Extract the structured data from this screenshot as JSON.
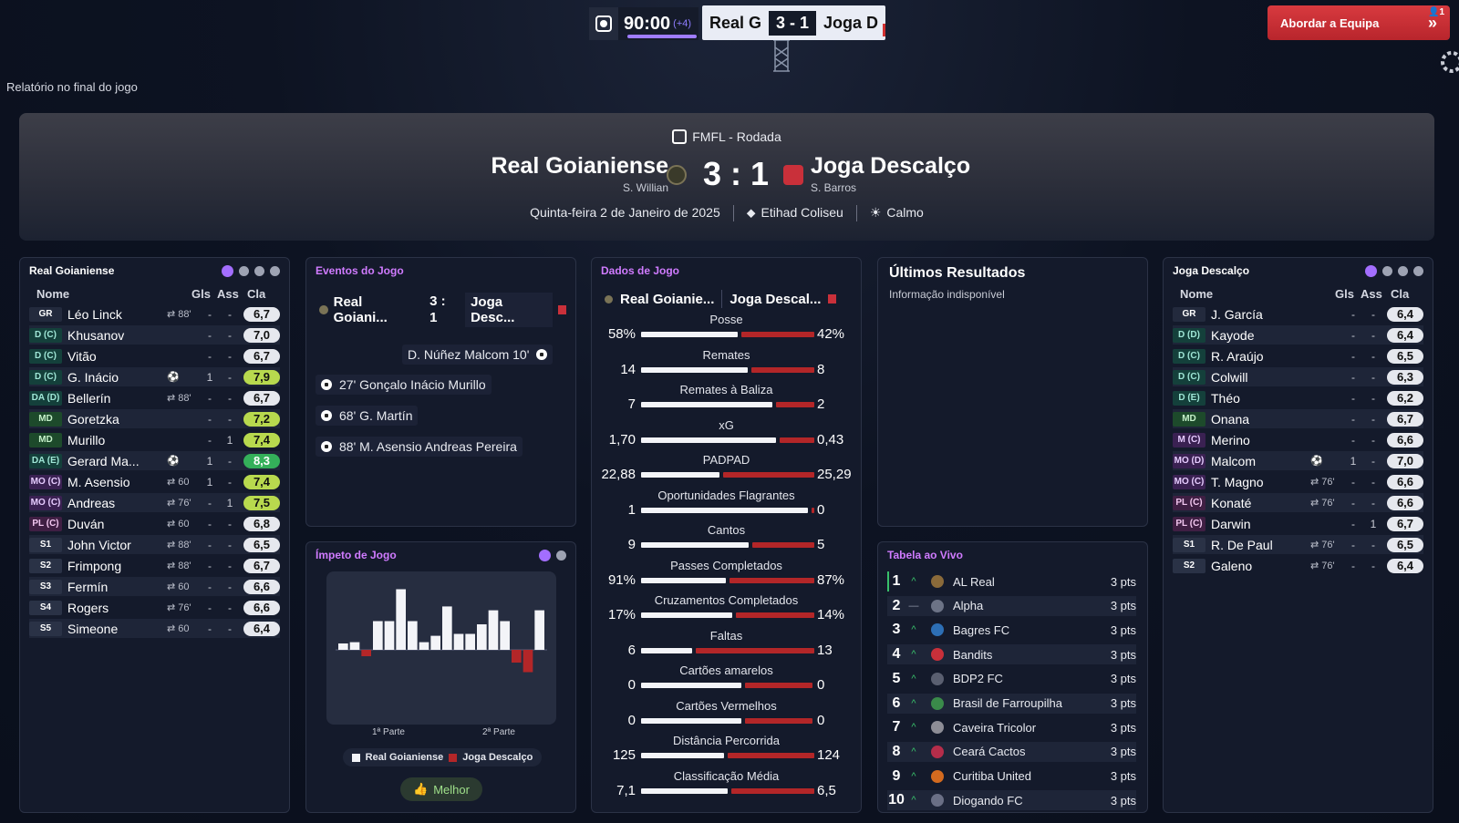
{
  "topbar": {
    "clock": "90:00",
    "added_time": "(+4)",
    "home_short": "Real G",
    "score": "3 - 1",
    "away_short": "Joga D",
    "approach_label": "Abordar a Equipa",
    "approach_badge": "1"
  },
  "report_label": "Relatório no final do jogo",
  "header": {
    "competition": "FMFL - Rodada",
    "home_team": "Real Goianiense",
    "home_manager": "S. Willian",
    "score": "3 : 1",
    "away_team": "Joga Descalço",
    "away_manager": "S. Barros",
    "date": "Quinta-feira 2 de Janeiro de 2025",
    "stadium": "Etihad Coliseu",
    "weather": "Calmo"
  },
  "colors": {
    "accent": "#a36eff",
    "home": "#f3f4f8",
    "away": "#b32628",
    "approach": "#d83a3f"
  },
  "home_panel": {
    "title": "Real Goianiense",
    "headers": [
      "Nome",
      "Gls",
      "Ass",
      "Cla"
    ],
    "players": [
      {
        "pos": "GR",
        "cls": "gk",
        "name": "Léo Linck",
        "evt": "⇄ 88'",
        "g": "-",
        "a": "-",
        "r": "6,7",
        "rc": ""
      },
      {
        "pos": "D (C)",
        "cls": "df",
        "name": "Khusanov",
        "evt": "",
        "g": "-",
        "a": "-",
        "r": "7,0",
        "rc": ""
      },
      {
        "pos": "D (C)",
        "cls": "df",
        "name": "Vitão",
        "evt": "",
        "g": "-",
        "a": "-",
        "r": "6,7",
        "rc": ""
      },
      {
        "pos": "D (C)",
        "cls": "df",
        "name": "G. Inácio",
        "evt": "⚽",
        "g": "1",
        "a": "-",
        "r": "7,9",
        "rc": "g1"
      },
      {
        "pos": "DA (D)",
        "cls": "df",
        "name": "Bellerín",
        "evt": "⇄ 88'",
        "g": "-",
        "a": "-",
        "r": "6,7",
        "rc": ""
      },
      {
        "pos": "MD",
        "cls": "md",
        "name": "Goretzka",
        "evt": "",
        "g": "-",
        "a": "-",
        "r": "7,2",
        "rc": "g1"
      },
      {
        "pos": "MD",
        "cls": "md",
        "name": "Murillo",
        "evt": "",
        "g": "-",
        "a": "1",
        "r": "7,4",
        "rc": "g1"
      },
      {
        "pos": "DA (E)",
        "cls": "df",
        "name": "Gerard Ma...",
        "evt": "⚽",
        "g": "1",
        "a": "-",
        "r": "8,3",
        "rc": "g2"
      },
      {
        "pos": "MO (C)",
        "cls": "mo",
        "name": "M. Asensio",
        "evt": "⇄ 60",
        "g": "1",
        "a": "-",
        "r": "7,4",
        "rc": "g1"
      },
      {
        "pos": "MO (C)",
        "cls": "mo",
        "name": "Andreas",
        "evt": "⇄ 76'",
        "g": "-",
        "a": "1",
        "r": "7,5",
        "rc": "g1"
      },
      {
        "pos": "PL (C)",
        "cls": "pl",
        "name": "Duván",
        "evt": "⇄ 60",
        "g": "-",
        "a": "-",
        "r": "6,8",
        "rc": ""
      },
      {
        "pos": "S1",
        "cls": "sb",
        "name": "John Victor",
        "evt": "⇄ 88'",
        "g": "-",
        "a": "-",
        "r": "6,5",
        "rc": ""
      },
      {
        "pos": "S2",
        "cls": "sb",
        "name": "Frimpong",
        "evt": "⇄ 88'",
        "g": "-",
        "a": "-",
        "r": "6,7",
        "rc": ""
      },
      {
        "pos": "S3",
        "cls": "sb",
        "name": "Fermín",
        "evt": "⇄ 60",
        "g": "-",
        "a": "-",
        "r": "6,6",
        "rc": ""
      },
      {
        "pos": "S4",
        "cls": "sb",
        "name": "Rogers",
        "evt": "⇄ 76'",
        "g": "-",
        "a": "-",
        "r": "6,6",
        "rc": ""
      },
      {
        "pos": "S5",
        "cls": "sb",
        "name": "Simeone",
        "evt": "⇄ 60",
        "g": "-",
        "a": "-",
        "r": "6,4",
        "rc": ""
      }
    ]
  },
  "events_panel": {
    "title": "Eventos do Jogo",
    "home": "Real Goiani...",
    "score": "3 : 1",
    "away": "Joga Desc...",
    "away_events": [
      "D. Núñez Malcom 10'"
    ],
    "home_events": [
      "27' Gonçalo Inácio Murillo",
      "68' G. Martín",
      "88' M. Asensio Andreas Pereira"
    ]
  },
  "momentum_panel": {
    "title": "Ímpeto de Jogo",
    "first_half": "1ª Parte",
    "second_half": "2ª Parte",
    "legend_home": "Real Goianiense",
    "legend_away": "Joga Descalço",
    "best_button": "Melhor"
  },
  "chart_data": {
    "type": "bar",
    "title": "Ímpeto de Jogo",
    "series": [
      {
        "name": "Real Goianiense",
        "values": [
          0.1,
          0.12,
          0,
          0.45,
          0.45,
          0.95,
          0.45,
          0.12,
          0.22,
          0.68,
          0.25,
          0.25,
          0.4,
          0.62,
          0.45,
          0,
          0,
          0.62
        ]
      },
      {
        "name": "Joga Descalço",
        "values": [
          0,
          0,
          -0.1,
          0,
          0,
          0,
          0,
          0,
          0,
          0,
          0,
          0,
          0,
          0,
          0,
          -0.2,
          -0.35,
          0
        ]
      }
    ],
    "x_labels": [
      "1ª Parte",
      "2ª Parte"
    ],
    "ylim": [
      -0.5,
      1
    ]
  },
  "stats_panel": {
    "title": "Dados de Jogo",
    "home": "Real Goianie...",
    "away": "Joga Descal...",
    "rows": [
      {
        "label": "Posse",
        "h": "58%",
        "a": "42%",
        "hv": 58,
        "av": 42
      },
      {
        "label": "Remates",
        "h": "14",
        "a": "8",
        "hv": 14,
        "av": 8
      },
      {
        "label": "Remates à Baliza",
        "h": "7",
        "a": "2",
        "hv": 7,
        "av": 2
      },
      {
        "label": "xG",
        "h": "1,70",
        "a": "0,43",
        "hv": 1.7,
        "av": 0.43
      },
      {
        "label": "PADPAD",
        "h": "22,88",
        "a": "25,29",
        "hv": 22.88,
        "av": 25.29
      },
      {
        "label": "Oportunidades Flagrantes",
        "h": "1",
        "a": "0",
        "hv": 1,
        "av": 0
      },
      {
        "label": "Cantos",
        "h": "9",
        "a": "5",
        "hv": 9,
        "av": 5
      },
      {
        "label": "Passes Completados",
        "h": "91%",
        "a": "87%",
        "hv": 91,
        "av": 87
      },
      {
        "label": "Cruzamentos Completados",
        "h": "17%",
        "a": "14%",
        "hv": 17,
        "av": 14
      },
      {
        "label": "Faltas",
        "h": "6",
        "a": "13",
        "hv": 6,
        "av": 13
      },
      {
        "label": "Cartões amarelos",
        "h": "0",
        "a": "0",
        "hv": 0,
        "av": 0
      },
      {
        "label": "Cartões Vermelhos",
        "h": "0",
        "a": "0",
        "hv": 0,
        "av": 0
      },
      {
        "label": "Distância Percorrida",
        "h": "125",
        "a": "124",
        "hv": 125,
        "av": 124
      },
      {
        "label": "Classificação Média",
        "h": "7,1",
        "a": "6,5",
        "hv": 7.1,
        "av": 6.5
      }
    ]
  },
  "results_panel": {
    "title": "Últimos Resultados",
    "info": "Informação indisponível"
  },
  "live_table": {
    "title": "Tabela ao Vivo",
    "rows": [
      {
        "n": "1",
        "t": "^",
        "team": "AL Real",
        "pts": "3 pts"
      },
      {
        "n": "2",
        "t": "—",
        "team": "Alpha",
        "pts": "3 pts"
      },
      {
        "n": "3",
        "t": "^",
        "team": "Bagres FC",
        "pts": "3 pts"
      },
      {
        "n": "4",
        "t": "^",
        "team": "Bandits",
        "pts": "3 pts"
      },
      {
        "n": "5",
        "t": "^",
        "team": "BDP2 FC",
        "pts": "3 pts"
      },
      {
        "n": "6",
        "t": "^",
        "team": "Brasil de Farroupilha",
        "pts": "3 pts"
      },
      {
        "n": "7",
        "t": "^",
        "team": "Caveira Tricolor",
        "pts": "3 pts"
      },
      {
        "n": "8",
        "t": "^",
        "team": "Ceará Cactos",
        "pts": "3 pts"
      },
      {
        "n": "9",
        "t": "^",
        "team": "Curitiba United",
        "pts": "3 pts"
      },
      {
        "n": "10",
        "t": "^",
        "team": "Diogando FC",
        "pts": "3 pts"
      }
    ]
  },
  "away_panel": {
    "title": "Joga Descalço",
    "headers": [
      "Nome",
      "Gls",
      "Ass",
      "Cla"
    ],
    "players": [
      {
        "pos": "GR",
        "cls": "gk",
        "name": "J. García",
        "evt": "",
        "g": "-",
        "a": "-",
        "r": "6,4",
        "rc": ""
      },
      {
        "pos": "D (D)",
        "cls": "df",
        "name": "Kayode",
        "evt": "",
        "g": "-",
        "a": "-",
        "r": "6,4",
        "rc": ""
      },
      {
        "pos": "D (C)",
        "cls": "df",
        "name": "R. Araújo",
        "evt": "",
        "g": "-",
        "a": "-",
        "r": "6,5",
        "rc": ""
      },
      {
        "pos": "D (C)",
        "cls": "df",
        "name": "Colwill",
        "evt": "",
        "g": "-",
        "a": "-",
        "r": "6,3",
        "rc": ""
      },
      {
        "pos": "D (E)",
        "cls": "df",
        "name": "Théo",
        "evt": "",
        "g": "-",
        "a": "-",
        "r": "6,2",
        "rc": ""
      },
      {
        "pos": "MD",
        "cls": "md",
        "name": "Onana",
        "evt": "",
        "g": "-",
        "a": "-",
        "r": "6,7",
        "rc": ""
      },
      {
        "pos": "M (C)",
        "cls": "mo",
        "name": "Merino",
        "evt": "",
        "g": "-",
        "a": "-",
        "r": "6,6",
        "rc": ""
      },
      {
        "pos": "MO (D)",
        "cls": "mo",
        "name": "Malcom",
        "evt": "⚽",
        "g": "1",
        "a": "-",
        "r": "7,0",
        "rc": ""
      },
      {
        "pos": "MO (C)",
        "cls": "mo",
        "name": "T. Magno",
        "evt": "⇄ 76'",
        "g": "-",
        "a": "-",
        "r": "6,6",
        "rc": ""
      },
      {
        "pos": "PL (C)",
        "cls": "pl",
        "name": "Konaté",
        "evt": "⇄ 76'",
        "g": "-",
        "a": "-",
        "r": "6,6",
        "rc": ""
      },
      {
        "pos": "PL (C)",
        "cls": "pl",
        "name": "Darwin",
        "evt": "",
        "g": "-",
        "a": "1",
        "r": "6,7",
        "rc": ""
      },
      {
        "pos": "S1",
        "cls": "sb",
        "name": "R. De Paul",
        "evt": "⇄ 76'",
        "g": "-",
        "a": "-",
        "r": "6,5",
        "rc": ""
      },
      {
        "pos": "S2",
        "cls": "sb",
        "name": "Galeno",
        "evt": "⇄ 76'",
        "g": "-",
        "a": "-",
        "r": "6,4",
        "rc": ""
      }
    ]
  }
}
